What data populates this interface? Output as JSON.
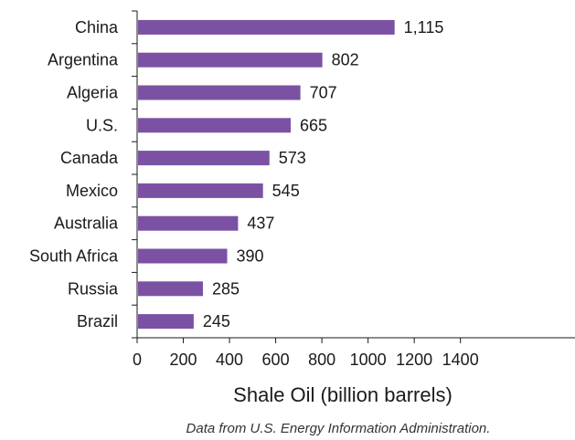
{
  "chart_data": {
    "type": "bar",
    "orientation": "horizontal",
    "categories": [
      "China",
      "Argentina",
      "Algeria",
      "U.S.",
      "Canada",
      "Mexico",
      "Australia",
      "South Africa",
      "Russia",
      "Brazil"
    ],
    "values": [
      1115,
      802,
      707,
      665,
      573,
      545,
      437,
      390,
      285,
      245
    ],
    "value_labels": [
      "1,115",
      "802",
      "707",
      "665",
      "573",
      "545",
      "437",
      "390",
      "285",
      "245"
    ],
    "xlabel": "Shale Oil (billion barrels)",
    "xlim": [
      0,
      1900
    ],
    "xticks": [
      0,
      200,
      400,
      600,
      800,
      1000,
      1200,
      1400
    ],
    "grid": false,
    "bar_color": "#7b52a3"
  },
  "source_note": "Data from U.S. Energy Information Administration."
}
